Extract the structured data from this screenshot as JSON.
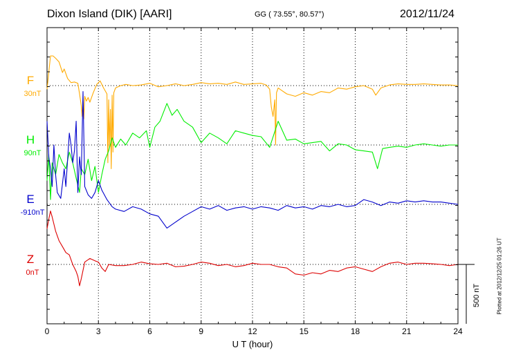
{
  "header": {
    "station": "Dixon Island (DIK)  [AARI]",
    "coords": "GG ( 73.55°,  80.57°)",
    "date": "2012/11/24"
  },
  "footer": {
    "plotted_at": "Plotted at 2012/12/25 01:26 UT"
  },
  "chart_data": {
    "type": "line",
    "xlabel": "U T (hour)",
    "xlim": [
      0,
      24
    ],
    "xticks": [
      0,
      3,
      6,
      9,
      12,
      15,
      18,
      21,
      24
    ],
    "scale_bar_label": "500 nT",
    "scale_bar_nT": 500,
    "channels": [
      {
        "name": "F",
        "baseline_label": "30nT",
        "color": "#ffaa00"
      },
      {
        "name": "H",
        "baseline_label": "90nT",
        "color": "#00ee00"
      },
      {
        "name": "E",
        "baseline_label": "-910nT",
        "color": "#0000cc"
      },
      {
        "name": "Z",
        "baseline_label": "0nT",
        "color": "#dd0000"
      }
    ],
    "series": [
      {
        "name": "F",
        "x": [
          0,
          0.2,
          0.35,
          0.5,
          0.7,
          0.9,
          1.0,
          1.2,
          1.4,
          1.6,
          1.8,
          1.9,
          2.0,
          2.05,
          2.1,
          2.15,
          2.2,
          2.3,
          2.4,
          2.5,
          2.7,
          2.9,
          3.1,
          3.3,
          3.5,
          3.55,
          3.6,
          3.65,
          3.7,
          3.75,
          3.8,
          3.85,
          3.9,
          4.0,
          4.3,
          4.6,
          5.0,
          5.5,
          6.0,
          6.5,
          7.0,
          7.5,
          8.0,
          8.5,
          9.0,
          9.5,
          10.0,
          10.5,
          11.0,
          11.5,
          12.0,
          12.5,
          12.8,
          13.0,
          13.1,
          13.2,
          13.3,
          13.35,
          13.4,
          13.5,
          13.7,
          14.0,
          14.5,
          15.0,
          15.5,
          16.0,
          16.5,
          17.0,
          17.5,
          18.0,
          18.5,
          19.0,
          19.2,
          19.5,
          20.0,
          20.5,
          21.0,
          21.5,
          22.0,
          22.5,
          23.0,
          23.5,
          24.0
        ],
        "y": [
          -30,
          250,
          250,
          230,
          200,
          110,
          140,
          60,
          25,
          30,
          20,
          -70,
          -170,
          -260,
          -120,
          -280,
          -90,
          -130,
          -100,
          -140,
          -60,
          10,
          40,
          -20,
          -70,
          -650,
          -120,
          -520,
          -200,
          -700,
          -80,
          -560,
          -60,
          -20,
          0,
          10,
          0,
          5,
          20,
          -10,
          0,
          15,
          0,
          10,
          25,
          15,
          20,
          10,
          30,
          10,
          15,
          20,
          5,
          -30,
          -180,
          -260,
          -120,
          -500,
          -60,
          -20,
          -40,
          -70,
          -90,
          -60,
          -80,
          -50,
          -60,
          -20,
          -30,
          -10,
          0,
          -30,
          -80,
          -20,
          5,
          15,
          10,
          10,
          15,
          10,
          5,
          5,
          0
        ]
      },
      {
        "name": "H",
        "x": [
          0,
          0.1,
          0.2,
          0.3,
          0.5,
          0.7,
          0.9,
          1.1,
          1.3,
          1.5,
          1.7,
          1.9,
          2.0,
          2.2,
          2.4,
          2.6,
          2.8,
          3.0,
          3.2,
          3.4,
          3.6,
          3.8,
          4.0,
          4.3,
          4.6,
          5.0,
          5.4,
          5.8,
          6.0,
          6.3,
          6.6,
          7.0,
          7.3,
          7.6,
          8.0,
          8.5,
          9.0,
          9.5,
          10.0,
          10.5,
          11.0,
          11.5,
          12.0,
          12.5,
          13.0,
          13.5,
          14.0,
          14.5,
          15.0,
          15.5,
          16.0,
          16.5,
          17.0,
          17.5,
          18.0,
          18.5,
          19.0,
          19.3,
          19.6,
          20.0,
          20.5,
          21.0,
          21.5,
          22.0,
          22.5,
          23.0,
          23.5,
          24.0
        ],
        "y": [
          -300,
          -80,
          -460,
          -150,
          -250,
          -80,
          -150,
          -200,
          -60,
          -150,
          -280,
          -400,
          -200,
          -250,
          -120,
          -300,
          -180,
          -400,
          -250,
          -120,
          -50,
          60,
          -20,
          50,
          0,
          100,
          60,
          120,
          -20,
          150,
          200,
          350,
          250,
          300,
          200,
          150,
          20,
          100,
          60,
          10,
          120,
          100,
          80,
          70,
          -20,
          200,
          40,
          50,
          10,
          20,
          30,
          -50,
          10,
          0,
          -40,
          -50,
          -60,
          -200,
          -30,
          -20,
          -10,
          -20,
          0,
          10,
          0,
          -10,
          0,
          0
        ]
      },
      {
        "name": "E",
        "x": [
          0,
          0.1,
          0.2,
          0.3,
          0.4,
          0.5,
          0.6,
          0.8,
          1.0,
          1.1,
          1.3,
          1.4,
          1.5,
          1.6,
          1.7,
          1.8,
          1.9,
          2.0,
          2.1,
          2.2,
          2.4,
          2.6,
          2.8,
          3.0,
          3.2,
          3.5,
          3.8,
          4.0,
          4.5,
          5.0,
          5.5,
          6.0,
          6.5,
          7.0,
          7.5,
          8.0,
          8.5,
          9.0,
          9.5,
          10.0,
          10.5,
          11.0,
          11.5,
          12.0,
          12.5,
          13.0,
          13.5,
          14.0,
          14.5,
          15.0,
          15.5,
          16.0,
          16.5,
          17.0,
          17.5,
          18.0,
          18.5,
          19.0,
          19.5,
          20.0,
          20.5,
          21.0,
          21.5,
          22.0,
          22.5,
          23.0,
          23.5,
          24.0
        ],
        "y": [
          700,
          400,
          300,
          150,
          500,
          250,
          100,
          50,
          300,
          150,
          600,
          500,
          350,
          450,
          700,
          100,
          400,
          250,
          950,
          150,
          80,
          50,
          100,
          200,
          120,
          40,
          -20,
          -40,
          -60,
          -20,
          -40,
          -80,
          -100,
          -200,
          -150,
          -100,
          -60,
          -20,
          -40,
          -10,
          -50,
          -30,
          -20,
          -40,
          -20,
          -30,
          -50,
          -10,
          -30,
          -20,
          -40,
          -10,
          -20,
          0,
          -20,
          -10,
          40,
          20,
          -10,
          20,
          10,
          30,
          20,
          30,
          20,
          20,
          10,
          0
        ]
      },
      {
        "name": "Z",
        "x": [
          0,
          0.1,
          0.2,
          0.3,
          0.5,
          0.7,
          0.9,
          1.1,
          1.3,
          1.5,
          1.7,
          1.8,
          1.9,
          2.0,
          2.2,
          2.5,
          2.8,
          3.0,
          3.2,
          3.4,
          3.6,
          4.0,
          4.5,
          5.0,
          5.5,
          6.0,
          6.5,
          7.0,
          7.5,
          8.0,
          8.5,
          9.0,
          9.5,
          10.0,
          10.5,
          11.0,
          11.5,
          12.0,
          12.5,
          13.0,
          13.5,
          14.0,
          14.5,
          15.0,
          15.5,
          16.0,
          16.5,
          17.0,
          17.5,
          18.0,
          18.5,
          19.0,
          19.5,
          20.0,
          20.5,
          21.0,
          21.5,
          22.0,
          22.5,
          23.0,
          23.5,
          24.0
        ],
        "y": [
          300,
          380,
          450,
          400,
          280,
          200,
          150,
          100,
          80,
          0,
          -60,
          -100,
          -180,
          -120,
          20,
          50,
          30,
          20,
          -30,
          -60,
          0,
          -10,
          -10,
          0,
          20,
          5,
          0,
          10,
          -20,
          -15,
          0,
          20,
          10,
          -10,
          0,
          -20,
          -10,
          10,
          0,
          0,
          -20,
          -30,
          -80,
          -90,
          -70,
          -80,
          -50,
          -60,
          -30,
          -20,
          -40,
          -60,
          -20,
          10,
          20,
          0,
          10,
          10,
          5,
          0,
          -10,
          0
        ]
      }
    ]
  }
}
